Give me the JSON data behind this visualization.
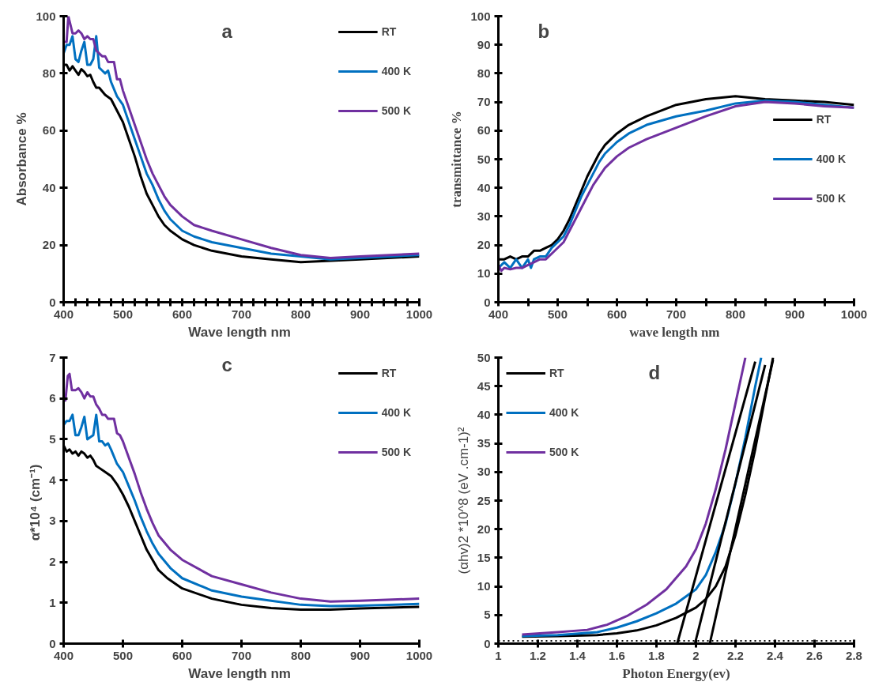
{
  "chart_data": [
    {
      "type": "line",
      "title": "a",
      "xlabel": "Wave length  nm",
      "ylabel": "Absorbance %",
      "xlim": [
        400,
        1000
      ],
      "ylim": [
        0,
        100
      ],
      "xticks": [
        400,
        {
          "value": 420,
          "label": null
        },
        {
          "value": 440,
          "label": null
        },
        {
          "value": 460,
          "label": null
        },
        {
          "value": 480,
          "label": null
        },
        500,
        {
          "value": 520,
          "label": null
        },
        {
          "value": 540,
          "label": null
        },
        {
          "value": 560,
          "label": null
        },
        {
          "value": 580,
          "label": null
        },
        600,
        {
          "value": 620,
          "label": null
        },
        {
          "value": 640,
          "label": null
        },
        {
          "value": 660,
          "label": null
        },
        {
          "value": 680,
          "label": null
        },
        700,
        {
          "value": 720,
          "label": null
        },
        {
          "value": 740,
          "label": null
        },
        {
          "value": 760,
          "label": null
        },
        {
          "value": 780,
          "label": null
        },
        800,
        {
          "value": 820,
          "label": null
        },
        {
          "value": 840,
          "label": null
        },
        {
          "value": 860,
          "label": null
        },
        {
          "value": 880,
          "label": null
        },
        900,
        {
          "value": 920,
          "label": null
        },
        {
          "value": 940,
          "label": null
        },
        {
          "value": 960,
          "label": null
        },
        {
          "value": 980,
          "label": null
        },
        1000
      ],
      "yticks": [
        0,
        20,
        40,
        60,
        80,
        100
      ],
      "grid": false,
      "legend": "top right",
      "marker": "none",
      "line_style": "solid",
      "series": [
        {
          "name": "RT",
          "color": "#000000",
          "x": [
            400,
            405,
            410,
            415,
            420,
            425,
            430,
            435,
            440,
            445,
            450,
            455,
            460,
            470,
            480,
            490,
            500,
            510,
            520,
            530,
            540,
            550,
            560,
            570,
            580,
            600,
            620,
            650,
            700,
            750,
            800,
            850,
            900,
            1000
          ],
          "values": [
            83,
            83,
            81,
            82.5,
            81,
            79.5,
            81.5,
            80.5,
            79,
            79.5,
            77,
            75,
            75,
            72.5,
            71,
            67,
            63,
            57,
            51,
            44,
            38,
            34,
            30,
            27,
            25,
            22,
            20,
            18,
            16,
            15,
            14,
            14.5,
            15,
            16
          ]
        },
        {
          "name": "400 K",
          "color": "#0070c0",
          "x": [
            400,
            405,
            410,
            415,
            420,
            425,
            430,
            435,
            440,
            445,
            450,
            455,
            460,
            465,
            470,
            475,
            480,
            490,
            500,
            510,
            520,
            530,
            540,
            550,
            560,
            570,
            580,
            600,
            620,
            650,
            700,
            750,
            800,
            850,
            900,
            1000
          ],
          "values": [
            87,
            90,
            90,
            93,
            85,
            84,
            88,
            91,
            83,
            83,
            85,
            93,
            82,
            81,
            80,
            81,
            77,
            72,
            69,
            63,
            57,
            51,
            45,
            41,
            36,
            32,
            29,
            25,
            23,
            21,
            19,
            17,
            16,
            15,
            15.5,
            16.5
          ]
        },
        {
          "name": "500 K",
          "color": "#7030a0",
          "x": [
            400,
            405,
            408,
            415,
            420,
            425,
            430,
            435,
            440,
            445,
            450,
            455,
            460,
            465,
            470,
            475,
            480,
            485,
            490,
            495,
            500,
            510,
            520,
            530,
            540,
            550,
            560,
            570,
            580,
            600,
            620,
            650,
            700,
            750,
            800,
            850,
            900,
            1000
          ],
          "values": [
            91,
            91,
            100,
            94,
            94,
            95,
            94,
            92,
            93,
            92,
            92,
            88,
            87,
            86,
            86,
            84,
            84,
            84,
            78,
            78,
            74,
            68,
            62,
            56,
            50,
            45,
            41,
            37,
            34,
            30,
            27,
            25,
            22,
            19,
            16.5,
            15.5,
            16,
            17
          ]
        }
      ]
    },
    {
      "type": "line",
      "title": "b",
      "xlabel": "wave length  nm",
      "ylabel": "transmittance %",
      "xlim": [
        400,
        1000
      ],
      "ylim": [
        0,
        100
      ],
      "xticks": [
        400,
        {
          "value": 450,
          "label": null
        },
        500,
        {
          "value": 550,
          "label": null
        },
        600,
        {
          "value": 650,
          "label": null
        },
        700,
        {
          "value": 750,
          "label": null
        },
        800,
        {
          "value": 850,
          "label": null
        },
        900,
        {
          "value": 950,
          "label": null
        },
        1000
      ],
      "yticks": [
        0,
        10,
        20,
        30,
        40,
        50,
        60,
        70,
        80,
        90,
        100
      ],
      "grid": false,
      "legend": "right",
      "marker": "none",
      "line_style": "solid",
      "series": [
        {
          "name": "RT",
          "color": "#000000",
          "x": [
            400,
            410,
            420,
            430,
            440,
            450,
            460,
            470,
            480,
            490,
            500,
            510,
            520,
            530,
            540,
            550,
            560,
            570,
            580,
            600,
            620,
            650,
            700,
            750,
            800,
            850,
            900,
            950,
            1000
          ],
          "values": [
            15,
            15,
            16,
            15,
            16,
            16,
            18,
            18,
            19,
            20,
            22,
            25,
            29,
            34,
            39,
            44,
            48,
            52,
            55,
            59,
            62,
            65,
            69,
            71,
            72,
            71,
            70.5,
            70,
            69
          ]
        },
        {
          "name": "400 K",
          "color": "#0070c0",
          "x": [
            400,
            410,
            420,
            430,
            440,
            450,
            455,
            460,
            470,
            480,
            490,
            500,
            510,
            520,
            530,
            540,
            550,
            560,
            570,
            580,
            600,
            620,
            650,
            700,
            750,
            800,
            850,
            900,
            950,
            1000
          ],
          "values": [
            12,
            14,
            12,
            15,
            12,
            15,
            12,
            15,
            16,
            16,
            19,
            21,
            23,
            27,
            32,
            37,
            41,
            45,
            49,
            52,
            56,
            59,
            62,
            65,
            67,
            69.5,
            70.5,
            70,
            69,
            68
          ]
        },
        {
          "name": "500 K",
          "color": "#7030a0",
          "x": [
            400,
            405,
            410,
            420,
            430,
            440,
            450,
            460,
            470,
            480,
            490,
            500,
            510,
            520,
            530,
            540,
            550,
            560,
            570,
            580,
            600,
            620,
            650,
            700,
            750,
            800,
            850,
            900,
            950,
            1000
          ],
          "values": [
            13,
            11,
            12,
            11.5,
            12,
            12,
            13,
            14,
            15,
            15,
            17,
            19,
            21,
            25,
            29,
            33,
            37,
            41,
            44,
            47,
            51,
            54,
            57,
            61,
            65,
            68.5,
            70,
            69.5,
            68.5,
            68
          ]
        }
      ]
    },
    {
      "type": "line",
      "title": "c",
      "xlabel": "Wave length  nm",
      "ylabel": "α*10⁴  (cm⁻¹)",
      "xlim": [
        400,
        1000
      ],
      "ylim": [
        0,
        7
      ],
      "xticks": [
        400,
        500,
        600,
        700,
        800,
        900,
        1000
      ],
      "yticks": [
        0,
        1,
        2,
        3,
        4,
        5,
        6,
        7
      ],
      "grid": false,
      "legend": "top right",
      "marker": "none",
      "line_style": "solid",
      "series": [
        {
          "name": "RT",
          "color": "#000000",
          "x": [
            400,
            405,
            410,
            415,
            420,
            425,
            430,
            435,
            440,
            445,
            450,
            455,
            460,
            470,
            480,
            490,
            500,
            510,
            520,
            530,
            540,
            550,
            560,
            575,
            600,
            650,
            700,
            750,
            800,
            850,
            900,
            1000
          ],
          "values": [
            4.85,
            4.7,
            4.75,
            4.65,
            4.7,
            4.6,
            4.7,
            4.65,
            4.55,
            4.6,
            4.5,
            4.35,
            4.3,
            4.2,
            4.1,
            3.9,
            3.65,
            3.35,
            3.0,
            2.65,
            2.3,
            2.05,
            1.8,
            1.6,
            1.35,
            1.1,
            0.95,
            0.87,
            0.83,
            0.83,
            0.86,
            0.9
          ]
        },
        {
          "name": "400 K",
          "color": "#0070c0",
          "x": [
            400,
            405,
            410,
            415,
            420,
            425,
            430,
            435,
            440,
            445,
            450,
            455,
            460,
            465,
            470,
            475,
            480,
            490,
            500,
            510,
            520,
            530,
            540,
            550,
            560,
            580,
            600,
            650,
            700,
            750,
            800,
            850,
            900,
            1000
          ],
          "values": [
            5.35,
            5.45,
            5.45,
            5.6,
            5.1,
            5.1,
            5.3,
            5.55,
            5.0,
            5.05,
            5.1,
            5.6,
            4.95,
            4.95,
            4.85,
            4.9,
            4.75,
            4.4,
            4.2,
            3.85,
            3.5,
            3.1,
            2.75,
            2.45,
            2.2,
            1.85,
            1.6,
            1.3,
            1.15,
            1.05,
            0.95,
            0.92,
            0.93,
            0.97
          ]
        },
        {
          "name": "500 K",
          "color": "#7030a0",
          "x": [
            400,
            403,
            407,
            410,
            414,
            420,
            425,
            430,
            435,
            440,
            445,
            450,
            455,
            460,
            465,
            470,
            475,
            480,
            485,
            490,
            495,
            500,
            510,
            520,
            530,
            540,
            550,
            560,
            580,
            600,
            650,
            700,
            750,
            800,
            850,
            900,
            1000
          ],
          "values": [
            6.0,
            5.95,
            6.55,
            6.6,
            6.2,
            6.2,
            6.25,
            6.15,
            6.0,
            6.15,
            6.05,
            6.05,
            5.85,
            5.75,
            5.6,
            5.6,
            5.5,
            5.5,
            5.5,
            5.15,
            5.1,
            4.95,
            4.55,
            4.15,
            3.7,
            3.3,
            2.95,
            2.65,
            2.3,
            2.05,
            1.65,
            1.45,
            1.25,
            1.1,
            1.03,
            1.05,
            1.1
          ]
        }
      ]
    },
    {
      "type": "line",
      "title": "d",
      "xlabel": "Photon Energy(ev)",
      "ylabel": "(αhv)2 *10^8 (eV .cm-1)²",
      "xlim": [
        1,
        2.8
      ],
      "ylim": [
        0,
        50
      ],
      "xticks": [
        1,
        1.2,
        1.4,
        1.6,
        1.8,
        2,
        2.2,
        2.4,
        2.6,
        2.8
      ],
      "yticks": [
        0,
        5,
        10,
        15,
        20,
        25,
        30,
        35,
        40,
        45,
        50
      ],
      "grid": false,
      "legend": "top left",
      "marker": "none",
      "line_style": "solid",
      "ref_lines": [
        {
          "axis": "y",
          "value": 0.5,
          "color": "#000000",
          "line_style": "dotted"
        }
      ],
      "series": [
        {
          "name": "RT",
          "color": "#000000",
          "x": [
            1.12,
            1.3,
            1.5,
            1.6,
            1.7,
            1.8,
            1.9,
            2.0,
            2.05,
            2.1,
            2.15,
            2.2,
            2.25,
            2.3,
            2.35,
            2.39
          ],
          "values": [
            1.2,
            1.3,
            1.5,
            1.8,
            2.3,
            3.2,
            4.5,
            6.3,
            7.8,
            10,
            13.5,
            19,
            26,
            34,
            43,
            50
          ]
        },
        {
          "name": "400 K",
          "color": "#0070c0",
          "x": [
            1.12,
            1.3,
            1.5,
            1.6,
            1.7,
            1.8,
            1.9,
            2.0,
            2.05,
            2.1,
            2.15,
            2.2,
            2.25,
            2.3,
            2.33
          ],
          "values": [
            1.3,
            1.5,
            2.0,
            2.8,
            3.9,
            5.3,
            7,
            9.5,
            12,
            16,
            21,
            28,
            36,
            45,
            50
          ]
        },
        {
          "name": "500 K",
          "color": "#7030a0",
          "x": [
            1.12,
            1.3,
            1.45,
            1.55,
            1.65,
            1.75,
            1.85,
            1.95,
            2.0,
            2.05,
            2.1,
            2.15,
            2.2,
            2.25
          ],
          "values": [
            1.6,
            2.0,
            2.4,
            3.3,
            4.8,
            6.8,
            9.5,
            13.5,
            16.5,
            21,
            27,
            34,
            42,
            50
          ]
        },
        {
          "type": "line",
          "color": "#000000",
          "x": [
            1.905,
            2.3
          ],
          "values": [
            0,
            49.3
          ]
        },
        {
          "type": "line",
          "color": "#000000",
          "x": [
            1.995,
            2.35
          ],
          "values": [
            0,
            48.7
          ]
        },
        {
          "type": "line",
          "color": "#000000",
          "x": [
            2.07,
            2.39
          ],
          "values": [
            0,
            49.6
          ]
        }
      ]
    }
  ]
}
